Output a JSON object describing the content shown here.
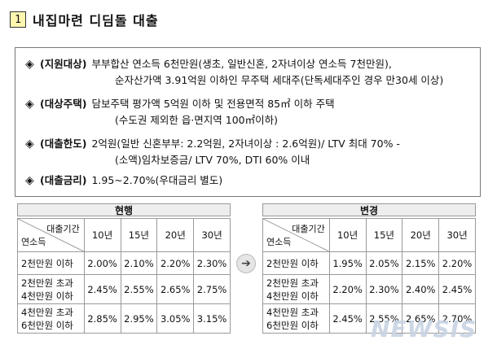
{
  "title": {
    "number": "1",
    "text": "내집마련 디딤돌 대출"
  },
  "info": {
    "bullet": "◈",
    "items": [
      {
        "label": "(지원대상)",
        "line1": "부부합산 연소득 6천만원(생초, 일반신혼, 2자녀이상 연소득 7천만원),",
        "line2": "순자산가액 3.91억원 이하인 무주택 세대주(단독세대주인 경우 만30세 이상)"
      },
      {
        "label": "(대상주택)",
        "line1": "담보주택 평가액 5억원 이하 및 전용면적 85㎡ 이하 주택",
        "line2": "(수도권 제외한 읍·면지역 100㎡이하)"
      },
      {
        "label": "(대출한도)",
        "line1": "2억원(일반 신혼부부: 2.2억원, 2자녀이상 : 2.6억원)/ LTV 최대 70% -",
        "line2": "(소액)임차보증금/ LTV 70%, DTI 60% 이내"
      },
      {
        "label": "(대출금리)",
        "line1": "1.95~2.70%(우대금리 별도)",
        "line2": ""
      }
    ]
  },
  "tables": {
    "corner_top": "대출기간",
    "corner_bottom": "연소득",
    "periods": [
      "10년",
      "15년",
      "20년",
      "30년"
    ],
    "current": {
      "header": "현행",
      "rows": [
        {
          "label1": "2천만원 이하",
          "label2": "",
          "values": [
            "2.00%",
            "2.10%",
            "2.20%",
            "2.30%"
          ]
        },
        {
          "label1": "2천만원 초과",
          "label2": "4천만원 이하",
          "values": [
            "2.45%",
            "2.55%",
            "2.65%",
            "2.75%"
          ]
        },
        {
          "label1": "4천만원 초과",
          "label2": "6천만원 이하",
          "values": [
            "2.85%",
            "2.95%",
            "3.05%",
            "3.15%"
          ]
        }
      ]
    },
    "changed": {
      "header": "변경",
      "rows": [
        {
          "label1": "2천만원 이하",
          "label2": "",
          "values": [
            "1.95%",
            "2.05%",
            "2.15%",
            "2.20%"
          ]
        },
        {
          "label1": "2천만원 초과",
          "label2": "4천만원 이하",
          "values": [
            "2.20%",
            "2.30%",
            "2.40%",
            "2.45%"
          ]
        },
        {
          "label1": "4천만원 초과",
          "label2": "6천만원 이하",
          "values": [
            "2.45%",
            "2.55%",
            "2.65%",
            "2.70%"
          ]
        }
      ]
    },
    "arrow": "➔"
  },
  "watermark": "NEWSIS"
}
